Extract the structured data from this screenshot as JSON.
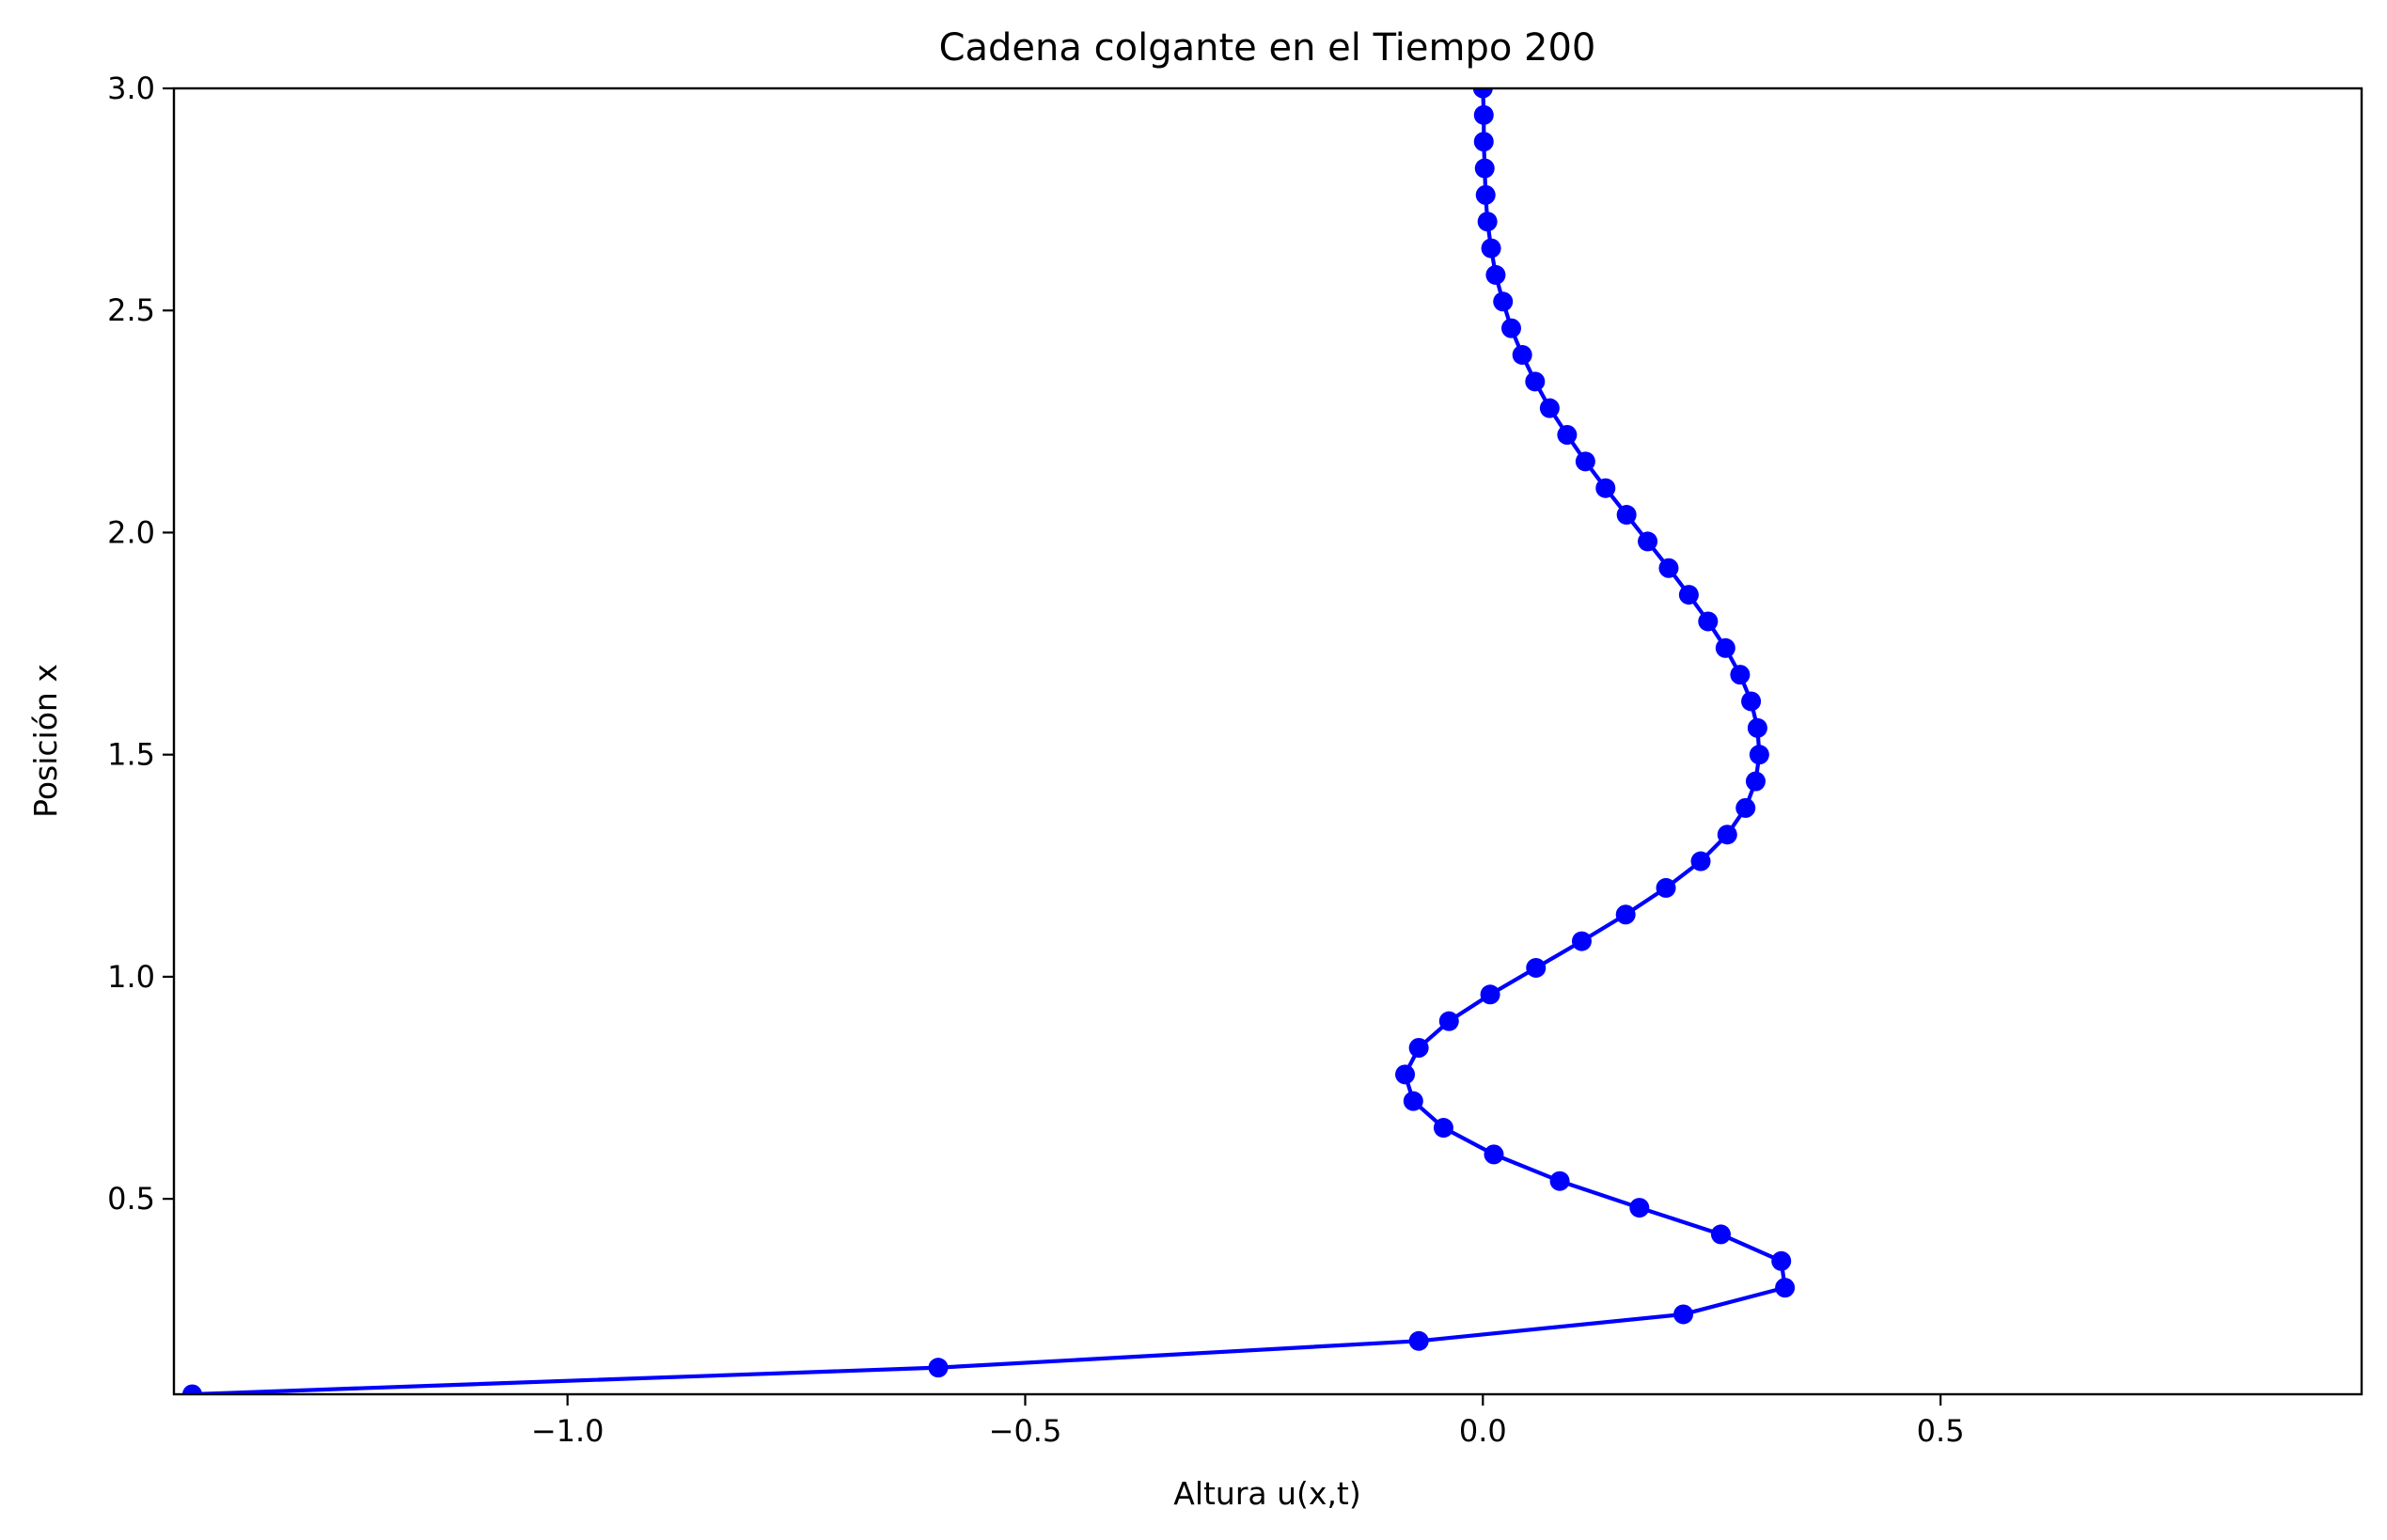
{
  "chart_data": {
    "type": "line",
    "title": "Cadena colgante en el Tiempo 200",
    "xlabel": "Altura u(x,t)",
    "ylabel": "Posición x",
    "xlim": [
      -1.43,
      0.96
    ],
    "ylim": [
      0.06,
      3.0
    ],
    "grid": false,
    "marker": "circle",
    "color": "#0000ff",
    "x_ticks": [
      {
        "value": -1.0,
        "label": "−1.0"
      },
      {
        "value": -0.5,
        "label": "−0.5"
      },
      {
        "value": 0.0,
        "label": "0.0"
      },
      {
        "value": 0.5,
        "label": "0.5"
      }
    ],
    "y_ticks": [
      {
        "value": 0.5,
        "label": "0.5"
      },
      {
        "value": 1.0,
        "label": "1.0"
      },
      {
        "value": 1.5,
        "label": "1.5"
      },
      {
        "value": 2.0,
        "label": "2.0"
      },
      {
        "value": 2.5,
        "label": "2.5"
      },
      {
        "value": 3.0,
        "label": "3.0"
      }
    ],
    "series": [
      {
        "points": [
          [
            -1.41,
            0.06
          ],
          [
            -0.595,
            0.12
          ],
          [
            -0.07,
            0.18
          ],
          [
            0.219,
            0.24
          ],
          [
            0.33,
            0.3
          ],
          [
            0.326,
            0.36
          ],
          [
            0.26,
            0.42
          ],
          [
            0.171,
            0.48
          ],
          [
            0.084,
            0.54
          ],
          [
            0.012,
            0.6
          ],
          [
            -0.043,
            0.66
          ],
          [
            -0.076,
            0.72
          ],
          [
            -0.085,
            0.78
          ],
          [
            -0.07,
            0.84
          ],
          [
            -0.037,
            0.9
          ],
          [
            0.008,
            0.96
          ],
          [
            0.058,
            1.02
          ],
          [
            0.108,
            1.08
          ],
          [
            0.156,
            1.14
          ],
          [
            0.2,
            1.2
          ],
          [
            0.238,
            1.26
          ],
          [
            0.267,
            1.32
          ],
          [
            0.287,
            1.38
          ],
          [
            0.298,
            1.44
          ],
          [
            0.302,
            1.5
          ],
          [
            0.3,
            1.56
          ],
          [
            0.293,
            1.62
          ],
          [
            0.281,
            1.68
          ],
          [
            0.265,
            1.74
          ],
          [
            0.246,
            1.8
          ],
          [
            0.225,
            1.86
          ],
          [
            0.203,
            1.92
          ],
          [
            0.18,
            1.98
          ],
          [
            0.157,
            2.04
          ],
          [
            0.134,
            2.1
          ],
          [
            0.112,
            2.16
          ],
          [
            0.092,
            2.22
          ],
          [
            0.073,
            2.28
          ],
          [
            0.057,
            2.34
          ],
          [
            0.043,
            2.4
          ],
          [
            0.031,
            2.46
          ],
          [
            0.022,
            2.52
          ],
          [
            0.014,
            2.58
          ],
          [
            0.009,
            2.64
          ],
          [
            0.005,
            2.7
          ],
          [
            0.003,
            2.76
          ],
          [
            0.002,
            2.82
          ],
          [
            0.001,
            2.88
          ],
          [
            0.001,
            2.94
          ],
          [
            0.0,
            3.0
          ]
        ]
      }
    ]
  }
}
